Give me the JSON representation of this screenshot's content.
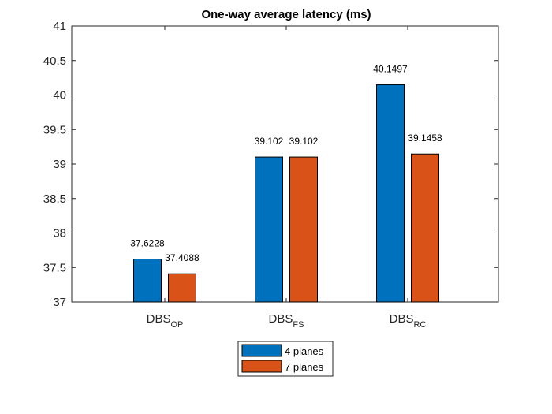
{
  "chart_data": {
    "type": "bar",
    "title": "One-way average latency (ms)",
    "categories": [
      {
        "main": "DBS",
        "sub": "OP"
      },
      {
        "main": "DBS",
        "sub": "FS"
      },
      {
        "main": "DBS",
        "sub": "RC"
      }
    ],
    "series": [
      {
        "name": "4 planes",
        "color": "#0072BD",
        "values": [
          37.6228,
          39.102,
          40.1497
        ],
        "labels": [
          "37.6228",
          "39.102",
          "40.1497"
        ]
      },
      {
        "name": "7 planes",
        "color": "#D95319",
        "values": [
          37.4088,
          39.102,
          39.1458
        ],
        "labels": [
          "37.4088",
          "39.102",
          "39.1458"
        ]
      }
    ],
    "ylim": [
      37,
      41
    ],
    "yticks": [
      "37",
      "37.5",
      "38",
      "38.5",
      "39",
      "39.5",
      "40",
      "40.5",
      "41"
    ],
    "grid": false,
    "legend_position": "bottom-center"
  }
}
